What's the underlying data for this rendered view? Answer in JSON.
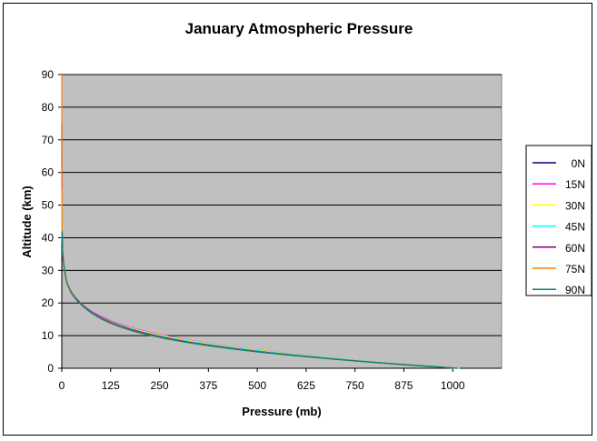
{
  "chart_data": {
    "type": "line",
    "title": "January Atmospheric Pressure",
    "xlabel": "Pressure (mb)",
    "ylabel": "Altitude (km)",
    "xlim": [
      0,
      1125
    ],
    "ylim": [
      0,
      90
    ],
    "x_ticks": [
      0,
      125,
      250,
      375,
      500,
      625,
      750,
      875,
      1000
    ],
    "y_ticks": [
      0,
      10,
      20,
      30,
      40,
      50,
      60,
      70,
      80,
      90
    ],
    "plot_background": "#c0c0c0",
    "grid": "horizontal",
    "legend_position": "right",
    "series": [
      {
        "name": "0N",
        "color": "#000080",
        "x": [
          1010,
          897,
          795,
          701,
          616,
          539,
          470,
          408,
          353,
          304,
          261,
          222,
          188,
          160,
          135,
          114,
          96,
          80,
          67,
          55,
          45,
          37,
          30,
          24,
          20,
          16,
          12,
          9,
          6,
          4,
          2,
          1,
          0.5,
          0.2,
          0.1,
          0.05
        ],
        "y": [
          0,
          1,
          2,
          3,
          4,
          5,
          6,
          7,
          8,
          9,
          10,
          11,
          12,
          13,
          14,
          15,
          16,
          17,
          18,
          19,
          20,
          21,
          22,
          23,
          24,
          25,
          26,
          28,
          30,
          32,
          35,
          40,
          45,
          55,
          65,
          75
        ]
      },
      {
        "name": "15N",
        "color": "#ff00ff",
        "x": [
          1012,
          899,
          797,
          704,
          619,
          542,
          473,
          411,
          356,
          307,
          264,
          225,
          191,
          162,
          137,
          116,
          98,
          82,
          69,
          57,
          47,
          38,
          31,
          25,
          20,
          16,
          12,
          9,
          6,
          4,
          2,
          1,
          0.5,
          0.2,
          0.1
        ],
        "y": [
          0,
          1,
          2,
          3,
          4,
          5,
          6,
          7,
          8,
          9,
          10,
          11,
          12,
          13,
          14,
          15,
          16,
          17,
          18,
          19,
          20,
          21,
          22,
          23,
          24,
          25,
          26,
          28,
          30,
          32,
          35,
          40,
          45,
          55,
          65
        ]
      },
      {
        "name": "30N",
        "color": "#ffff00",
        "x": [
          1018,
          902,
          798,
          703,
          617,
          540,
          470,
          407,
          352,
          302,
          258,
          220,
          186,
          157,
          133,
          112,
          94,
          79,
          66,
          55,
          46,
          38,
          31,
          25,
          20,
          16,
          12,
          9,
          6,
          4,
          2,
          1,
          0.5,
          0.2
        ],
        "y": [
          0,
          1,
          2,
          3,
          4,
          5,
          6,
          7,
          8,
          9,
          10,
          11,
          12,
          13,
          14,
          15,
          16,
          17,
          18,
          19,
          20,
          21,
          22,
          23,
          24,
          25,
          26,
          28,
          30,
          32,
          35,
          40,
          45,
          55
        ]
      },
      {
        "name": "45N",
        "color": "#00ffff",
        "x": [
          1018,
          898,
          792,
          695,
          608,
          530,
          459,
          396,
          340,
          291,
          248,
          211,
          180,
          153,
          130,
          111,
          94,
          80,
          68,
          57,
          48,
          40,
          33,
          27,
          22,
          18,
          14,
          10,
          7,
          4,
          2,
          1,
          0.5
        ],
        "y": [
          0,
          1,
          2,
          3,
          4,
          5,
          6,
          7,
          8,
          9,
          10,
          11,
          12,
          13,
          14,
          15,
          16,
          17,
          18,
          19,
          20,
          21,
          22,
          23,
          24,
          25,
          26,
          28,
          30,
          33,
          36,
          42,
          50
        ]
      },
      {
        "name": "60N",
        "color": "#800080",
        "x": [
          1013,
          890,
          780,
          682,
          594,
          515,
          444,
          382,
          327,
          280,
          240,
          205,
          175,
          150,
          128,
          109,
          93,
          79,
          67,
          57,
          48,
          40,
          33,
          27,
          22,
          18,
          14,
          10,
          7,
          4,
          2,
          1
        ],
        "y": [
          0,
          1,
          2,
          3,
          4,
          5,
          6,
          7,
          8,
          9,
          10,
          11,
          12,
          13,
          14,
          15,
          16,
          17,
          18,
          19,
          20,
          21,
          22,
          23,
          24,
          25,
          26,
          28,
          30,
          33,
          36,
          42
        ]
      },
      {
        "name": "75N",
        "color": "#ff8000",
        "x": [
          1012,
          887,
          776,
          676,
          587,
          507,
          436,
          374,
          319,
          272,
          232,
          198,
          169,
          145,
          124,
          106,
          90,
          77,
          65,
          55,
          47,
          39,
          33,
          27,
          22,
          18,
          14,
          10,
          7,
          4,
          2,
          1,
          0.5,
          0.2,
          0.1,
          0.05,
          0.02
        ],
        "y": [
          0,
          1,
          2,
          3,
          4,
          5,
          6,
          7,
          8,
          9,
          10,
          11,
          12,
          13,
          14,
          15,
          16,
          17,
          18,
          19,
          20,
          21,
          22,
          23,
          24,
          25,
          26,
          28,
          30,
          33,
          36,
          42,
          50,
          60,
          70,
          80,
          90
        ]
      },
      {
        "name": "90N",
        "color": "#008080",
        "x": [
          1010,
          884,
          772,
          672,
          583,
          503,
          432,
          370,
          315,
          268,
          228,
          194,
          166,
          142,
          121,
          103,
          88,
          75,
          64,
          54,
          46,
          38,
          32,
          26,
          21,
          17,
          13,
          10,
          7,
          4,
          2,
          1
        ],
        "y": [
          0,
          1,
          2,
          3,
          4,
          5,
          6,
          7,
          8,
          9,
          10,
          11,
          12,
          13,
          14,
          15,
          16,
          17,
          18,
          19,
          20,
          21,
          22,
          23,
          24,
          25,
          26,
          28,
          30,
          33,
          36,
          42
        ]
      }
    ]
  }
}
